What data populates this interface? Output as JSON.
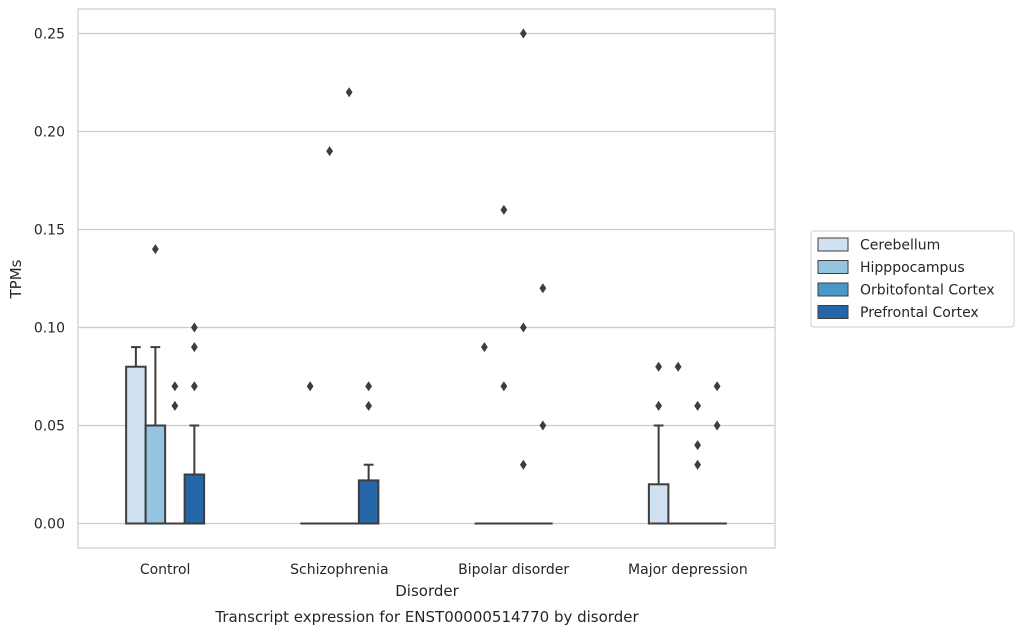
{
  "chart_data": {
    "type": "boxplot",
    "caption": "Transcript expression for ENST00000514770 by disorder",
    "xlabel": "Disorder",
    "ylabel": "TPMs",
    "ylim": [
      -0.012,
      0.263
    ],
    "yticks": [
      0.0,
      0.05,
      0.1,
      0.15,
      0.2,
      0.25
    ],
    "ytick_labels": [
      "0.00",
      "0.05",
      "0.10",
      "0.15",
      "0.20",
      "0.25"
    ],
    "categories": [
      "Control",
      "Schizophrenia",
      "Bipolar disorder",
      "Major depression"
    ],
    "grid": "horizontal",
    "legend_position": "right",
    "series": [
      {
        "name": "Cerebellum",
        "color": "#d0e1f2",
        "boxes": [
          {
            "q1": 0.0,
            "median": 0.0,
            "q3": 0.08,
            "whisker_low": 0.0,
            "whisker_high": 0.09,
            "outliers": []
          },
          {
            "q1": 0.0,
            "median": 0.0,
            "q3": 0.0,
            "whisker_low": 0.0,
            "whisker_high": 0.0,
            "outliers": [
              0.07
            ]
          },
          {
            "q1": 0.0,
            "median": 0.0,
            "q3": 0.0,
            "whisker_low": 0.0,
            "whisker_high": 0.0,
            "outliers": [
              0.09
            ]
          },
          {
            "q1": 0.0,
            "median": 0.0,
            "q3": 0.02,
            "whisker_low": 0.0,
            "whisker_high": 0.05,
            "outliers": [
              0.06,
              0.08
            ]
          }
        ]
      },
      {
        "name": "Hipppocampus",
        "color": "#94c4df",
        "boxes": [
          {
            "q1": 0.0,
            "median": 0.0,
            "q3": 0.05,
            "whisker_low": 0.0,
            "whisker_high": 0.09,
            "outliers": [
              0.14
            ]
          },
          {
            "q1": 0.0,
            "median": 0.0,
            "q3": 0.0,
            "whisker_low": 0.0,
            "whisker_high": 0.0,
            "outliers": [
              0.19
            ]
          },
          {
            "q1": 0.0,
            "median": 0.0,
            "q3": 0.0,
            "whisker_low": 0.0,
            "whisker_high": 0.0,
            "outliers": [
              0.07,
              0.16
            ]
          },
          {
            "q1": 0.0,
            "median": 0.0,
            "q3": 0.0,
            "whisker_low": 0.0,
            "whisker_high": 0.0,
            "outliers": [
              0.08
            ]
          }
        ]
      },
      {
        "name": "Orbitofontal Cortex",
        "color": "#4a98c9",
        "boxes": [
          {
            "q1": 0.0,
            "median": 0.0,
            "q3": 0.0,
            "whisker_low": 0.0,
            "whisker_high": 0.0,
            "outliers": [
              0.06,
              0.07
            ]
          },
          {
            "q1": 0.0,
            "median": 0.0,
            "q3": 0.0,
            "whisker_low": 0.0,
            "whisker_high": 0.0,
            "outliers": [
              0.22
            ]
          },
          {
            "q1": 0.0,
            "median": 0.0,
            "q3": 0.0,
            "whisker_low": 0.0,
            "whisker_high": 0.0,
            "outliers": [
              0.03,
              0.1,
              0.25
            ]
          },
          {
            "q1": 0.0,
            "median": 0.0,
            "q3": 0.0,
            "whisker_low": 0.0,
            "whisker_high": 0.0,
            "outliers": [
              0.03,
              0.04,
              0.06
            ]
          }
        ]
      },
      {
        "name": "Prefrontal Cortex",
        "color": "#2466a8",
        "boxes": [
          {
            "q1": 0.0,
            "median": 0.0,
            "q3": 0.025,
            "whisker_low": 0.0,
            "whisker_high": 0.05,
            "outliers": [
              0.07,
              0.09,
              0.1
            ]
          },
          {
            "q1": 0.0,
            "median": 0.0,
            "q3": 0.022,
            "whisker_low": 0.0,
            "whisker_high": 0.03,
            "outliers": [
              0.06,
              0.07
            ]
          },
          {
            "q1": 0.0,
            "median": 0.0,
            "q3": 0.0,
            "whisker_low": 0.0,
            "whisker_high": 0.0,
            "outliers": [
              0.05,
              0.12
            ]
          },
          {
            "q1": 0.0,
            "median": 0.0,
            "q3": 0.0,
            "whisker_low": 0.0,
            "whisker_high": 0.0,
            "outliers": [
              0.05,
              0.07
            ]
          }
        ]
      }
    ]
  }
}
